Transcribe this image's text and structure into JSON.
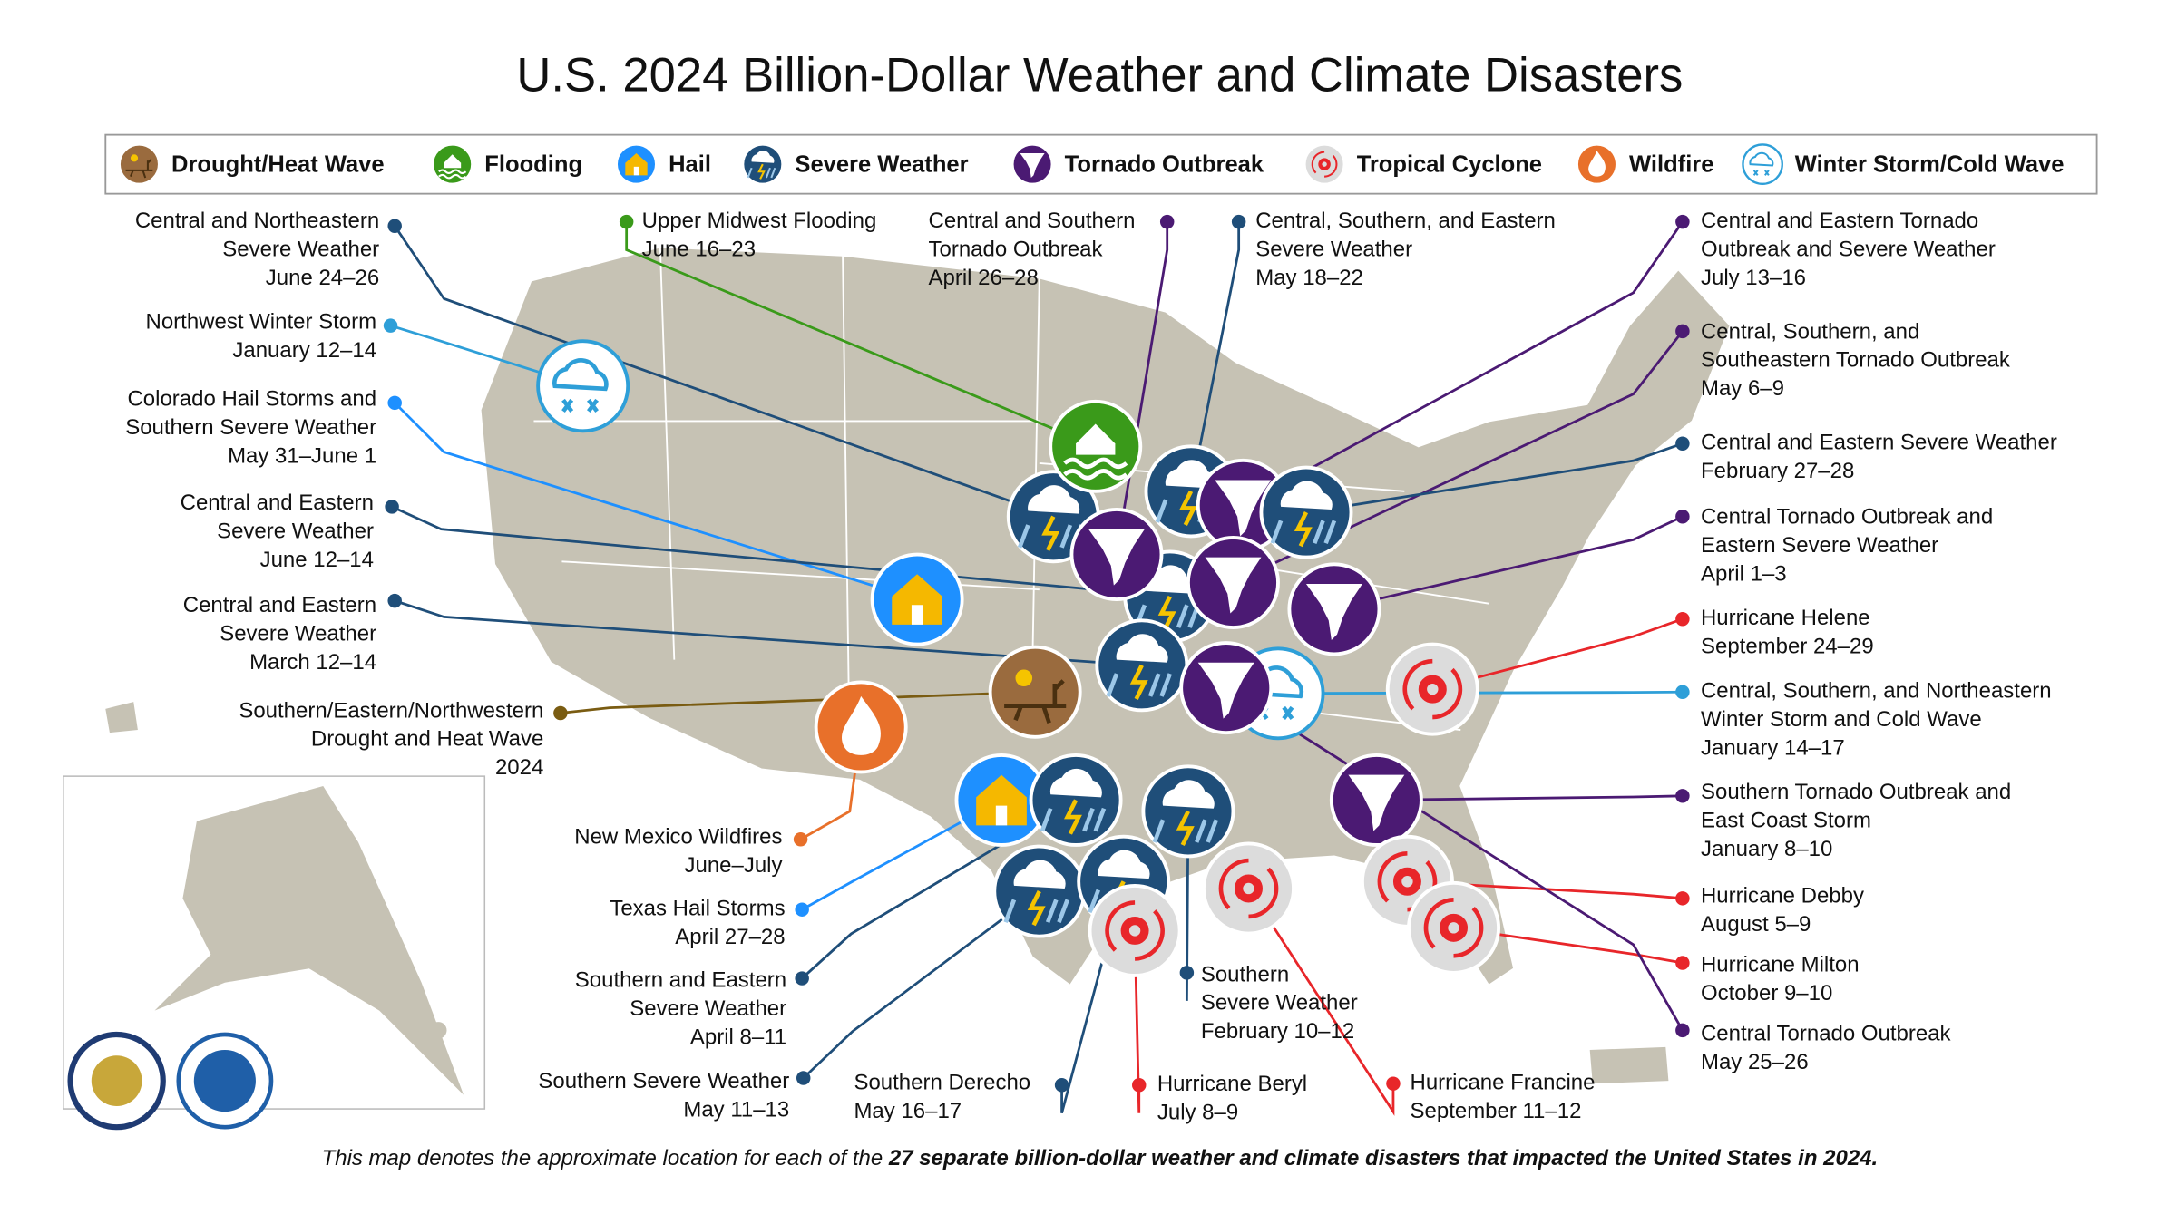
{
  "title": "U.S. 2024 Billion-Dollar Weather and Climate Disasters",
  "legend": [
    "Drought/Heat Wave",
    "Flooding",
    "Hail",
    "Severe Weather",
    "Tornado Outbreak",
    "Tropical Cyclone",
    "Wildfire",
    "Winter Storm/Cold Wave"
  ],
  "events": [
    {
      "lines": [
        "Central and Northeastern",
        "Severe Weather",
        "June 24–26"
      ]
    },
    {
      "lines": [
        "Northwest Winter Storm",
        "January 12–14"
      ]
    },
    {
      "lines": [
        "Colorado Hail Storms and",
        "Southern Severe Weather",
        "May 31–June 1"
      ]
    },
    {
      "lines": [
        "Central and Eastern",
        "Severe Weather",
        "June 12–14"
      ]
    },
    {
      "lines": [
        "Central and Eastern",
        "Severe Weather",
        "March 12–14"
      ]
    },
    {
      "lines": [
        "Southern/Eastern/Northwestern",
        "Drought and Heat Wave",
        "2024"
      ]
    },
    {
      "lines": [
        "New Mexico Wildfires",
        "June–July"
      ]
    },
    {
      "lines": [
        "Texas Hail Storms",
        "April 27–28"
      ]
    },
    {
      "lines": [
        "Southern and Eastern",
        "Severe Weather",
        "April 8–11"
      ]
    },
    {
      "lines": [
        "Southern Severe Weather",
        "May 11–13"
      ]
    },
    {
      "lines": [
        "Southern Derecho",
        "May 16–17"
      ]
    },
    {
      "lines": [
        "Hurricane Beryl",
        "July 8–9"
      ]
    },
    {
      "lines": [
        "Southern",
        "Severe Weather",
        "February 10–12"
      ]
    },
    {
      "lines": [
        "Hurricane Francine",
        "September 11–12"
      ]
    },
    {
      "lines": [
        "Upper Midwest Flooding",
        "June 16–23"
      ]
    },
    {
      "lines": [
        "Central and Southern",
        "Tornado Outbreak",
        "April 26–28"
      ]
    },
    {
      "lines": [
        "Central, Southern, and Eastern",
        "Severe Weather",
        "May 18–22"
      ]
    },
    {
      "lines": [
        "Central and Eastern Tornado",
        "Outbreak and Severe Weather",
        "July 13–16"
      ]
    },
    {
      "lines": [
        "Central, Southern, and",
        "Southeastern Tornado Outbreak",
        "May 6–9"
      ]
    },
    {
      "lines": [
        "Central and Eastern Severe Weather",
        "February 27–28"
      ]
    },
    {
      "lines": [
        "Central Tornado Outbreak and",
        "Eastern Severe Weather",
        "April 1–3"
      ]
    },
    {
      "lines": [
        "Hurricane Helene",
        "September 24–29"
      ]
    },
    {
      "lines": [
        "Central, Southern, and Northeastern",
        "Winter Storm and Cold Wave",
        "January 14–17"
      ]
    },
    {
      "lines": [
        "Southern Tornado Outbreak and",
        "East Coast Storm",
        "January 8–10"
      ]
    },
    {
      "lines": [
        "Hurricane Debby",
        "August 5–9"
      ]
    },
    {
      "lines": [
        "Hurricane Milton",
        "October 9–10"
      ]
    },
    {
      "lines": [
        "Central Tornado Outbreak",
        "May 25–26"
      ]
    }
  ],
  "footnote": {
    "text": "This map denotes the approximate location for each of the ",
    "emphasis": "27 separate billion-dollar weather and climate disasters that impacted the United States in 2024."
  }
}
